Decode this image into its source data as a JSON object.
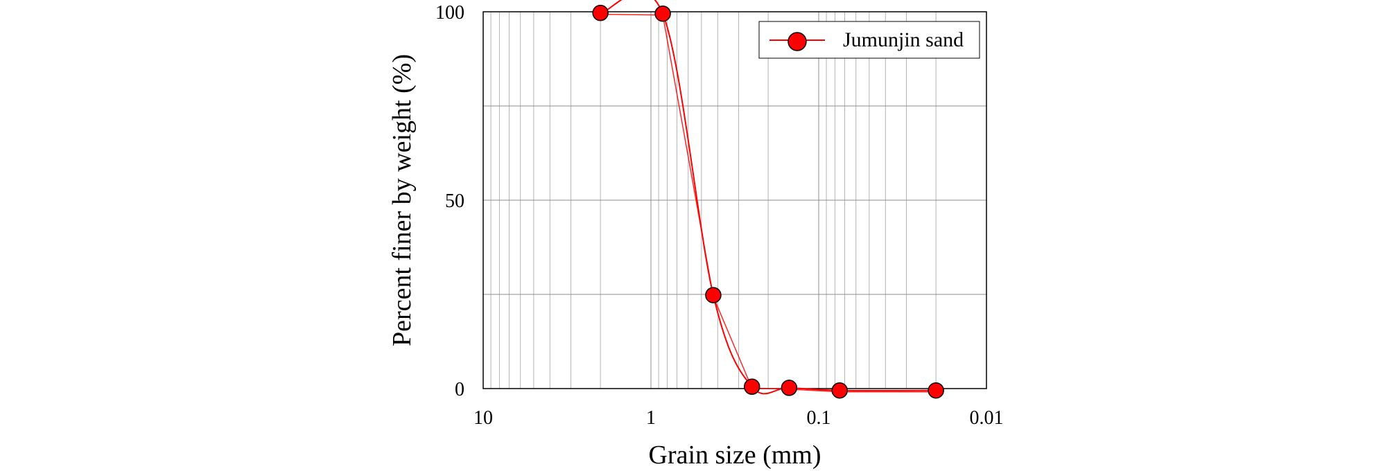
{
  "chart_data": {
    "type": "line",
    "title": "",
    "xlabel": "Grain size (mm)",
    "ylabel": "Percent finer by weight (%)",
    "x_scale": "log",
    "x_reversed": true,
    "xlim": [
      10,
      0.01
    ],
    "ylim": [
      0,
      100
    ],
    "x_ticks": [
      10,
      1,
      0.1,
      0.01
    ],
    "x_tick_labels": [
      "10",
      "1",
      "0.1",
      "0.01"
    ],
    "y_ticks": [
      0,
      50,
      100
    ],
    "y_tick_labels": [
      "0",
      "50",
      "100"
    ],
    "grid": true,
    "legend_position": "top-right",
    "series": [
      {
        "name": "Jumunjin sand",
        "color": "#ff0000",
        "marker": "circle",
        "x": [
          2.0,
          0.85,
          0.425,
          0.25,
          0.15,
          0.075,
          0.02
        ],
        "y": [
          99.7,
          99.5,
          24.8,
          0.5,
          0.2,
          -0.5,
          -0.5
        ]
      }
    ]
  }
}
